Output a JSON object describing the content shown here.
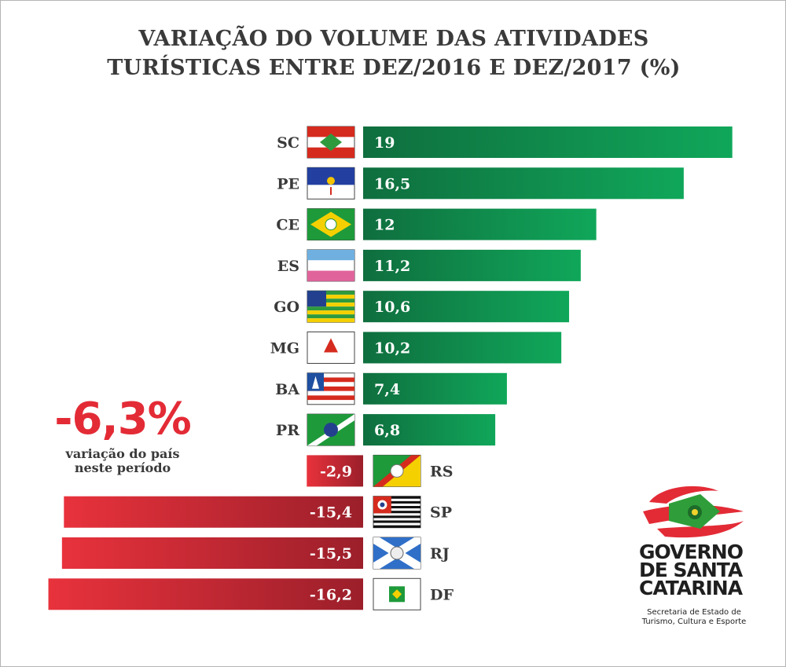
{
  "chart_data": {
    "type": "bar",
    "orientation": "horizontal",
    "title": "VARIAÇÃO DO VOLUME DAS ATIVIDADES TURÍSTICAS ENTRE DEZ/2016 E DEZ/2017 (%)",
    "title_lines": [
      "VARIAÇÃO DO VOLUME DAS ATIVIDADES",
      "TURÍSTICAS ENTRE DEZ/2016 E DEZ/2017 (%)"
    ],
    "categories": [
      "SC",
      "PE",
      "CE",
      "ES",
      "GO",
      "MG",
      "BA",
      "PR",
      "RS",
      "SP",
      "RJ",
      "DF"
    ],
    "values": [
      19,
      16.5,
      12,
      11.2,
      10.6,
      10.2,
      7.4,
      6.8,
      -2.9,
      -15.4,
      -15.5,
      -16.2
    ],
    "value_labels": [
      "19",
      "16,5",
      "12",
      "11,2",
      "10,6",
      "10,2",
      "7,4",
      "6,8",
      "-2,9",
      "-15,4",
      "-15,5",
      "-16,2"
    ],
    "positive_color": "#0b8f4b",
    "negative_color": "#e32b36",
    "annotation": {
      "value": "-6,3%",
      "caption_lines": [
        "variação do país",
        "neste período"
      ]
    }
  },
  "logo": {
    "name_lines": [
      "GOVERNO",
      "DE SANTA",
      "CATARINA"
    ],
    "dept_lines": [
      "Secretaria de Estado de",
      "Turismo, Cultura e Esporte"
    ]
  }
}
